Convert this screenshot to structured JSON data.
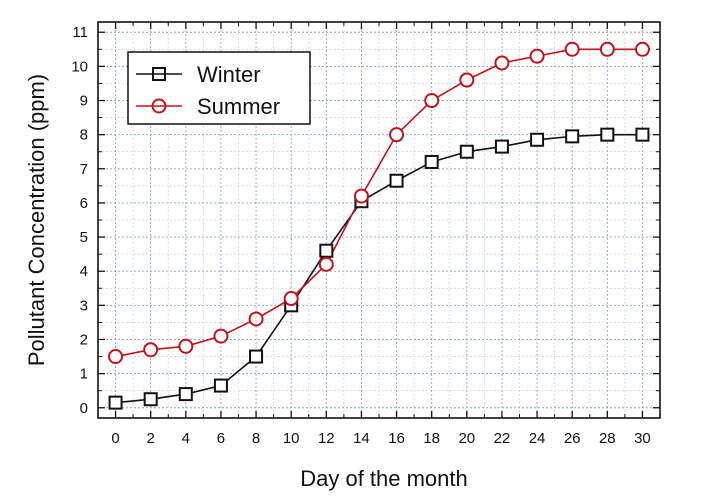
{
  "chart_data": {
    "type": "line",
    "xlabel": "Day of the month",
    "ylabel": "Pollutant Concentration (ppm)",
    "xlim": [
      -1,
      31
    ],
    "ylim": [
      -0.3,
      11.3
    ],
    "x_ticks": [
      0,
      2,
      4,
      6,
      8,
      10,
      12,
      14,
      16,
      18,
      20,
      22,
      24,
      26,
      28,
      30
    ],
    "y_ticks": [
      0,
      1,
      2,
      3,
      4,
      5,
      6,
      7,
      8,
      9,
      10,
      11
    ],
    "grid": true,
    "legend_position": "top-left",
    "x": [
      0,
      2,
      4,
      6,
      8,
      10,
      12,
      14,
      16,
      18,
      20,
      22,
      24,
      26,
      28,
      30
    ],
    "series": [
      {
        "name": "Winter",
        "marker": "square",
        "color": "#111111",
        "values": [
          0.15,
          0.25,
          0.4,
          0.65,
          1.5,
          3.0,
          4.6,
          6.05,
          6.65,
          7.2,
          7.5,
          7.65,
          7.85,
          7.95,
          8.0,
          8.0
        ]
      },
      {
        "name": "Summer",
        "marker": "circle",
        "color": "#c0141c",
        "values": [
          1.5,
          1.7,
          1.8,
          2.1,
          2.6,
          3.2,
          4.2,
          6.2,
          8.0,
          9.0,
          9.6,
          10.1,
          10.3,
          10.5,
          10.5,
          10.5
        ]
      }
    ]
  }
}
